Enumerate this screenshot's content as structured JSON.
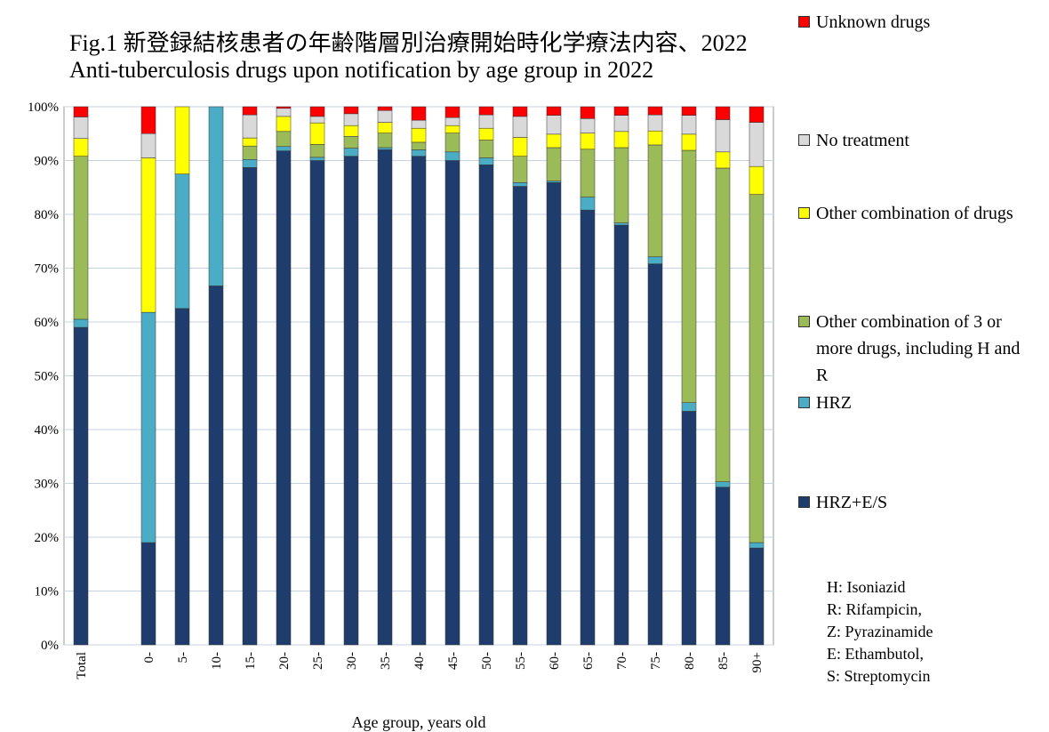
{
  "chart_data": {
    "type": "stacked_bar",
    "title": "Fig.1  新登録結核患者の年齢階層別治療開始時化学療法内容、2022",
    "subtitle": "Anti-tuberculosis  drugs upon notification  by age group in 2022",
    "x_label": "Age group,  years old",
    "categories": [
      "Total",
      null,
      "0-",
      "5-",
      "10-",
      "15-",
      "20-",
      "25-",
      "30-",
      "35-",
      "40-",
      "45-",
      "50-",
      "55-",
      "60-",
      "65-",
      "70-",
      "75-",
      "80-",
      "85-",
      "90+"
    ],
    "series": [
      {
        "name": "HRZ+E/S",
        "color": "#1f3d6c",
        "values": [
          59,
          null,
          19,
          62.5,
          66.7,
          88.7,
          91.8,
          90,
          90.8,
          92,
          90.8,
          90,
          89.2,
          85.2,
          85.9,
          80.8,
          78,
          70.8,
          43.4,
          29.3,
          18
        ]
      },
      {
        "name": "HRZ",
        "color": "#4bacc6",
        "values": [
          1.5,
          null,
          42.8,
          25,
          33.3,
          1.5,
          0.8,
          0.6,
          1.5,
          0.4,
          1.2,
          1.6,
          1.3,
          0.7,
          0.3,
          2.4,
          0.4,
          1.3,
          1.6,
          1,
          1
        ]
      },
      {
        "name": "Other combination of 3 or more drugs, including H and R",
        "color": "#9bbb59",
        "values": [
          30.3,
          null,
          0,
          0,
          0,
          2.5,
          2.8,
          2.4,
          2.2,
          2.7,
          1.4,
          3.5,
          3.3,
          4.9,
          6.2,
          8.9,
          14,
          20.8,
          46.9,
          58.3,
          64.7
        ]
      },
      {
        "name": "Other combination of drugs",
        "color": "#ffff00",
        "values": [
          3.3,
          null,
          28.7,
          12.5,
          0,
          1.5,
          2.8,
          4,
          2,
          2,
          2.6,
          1.4,
          2.2,
          3.5,
          2.5,
          3,
          3,
          2.6,
          3,
          3,
          5.2
        ]
      },
      {
        "name": "No treatment",
        "color": "#d9d9d9",
        "values": [
          4,
          null,
          4.5,
          0,
          0,
          4.3,
          1.5,
          1.2,
          2.2,
          2.2,
          1.5,
          1.5,
          2.5,
          3.9,
          3.5,
          2.7,
          3,
          3,
          3.5,
          6,
          8.2
        ]
      },
      {
        "name": "Unknown drugs",
        "color": "#ff0000",
        "values": [
          1.9,
          null,
          5,
          0,
          0,
          1.5,
          0.3,
          1.8,
          1.3,
          0.7,
          2.5,
          2,
          1.5,
          1.8,
          1.6,
          2.2,
          1.6,
          1.5,
          1.6,
          2.4,
          2.9
        ]
      }
    ],
    "ylim": [
      0,
      100
    ],
    "yticks": [
      {
        "value": 0,
        "label": "0%"
      },
      {
        "value": 10,
        "label": "10%"
      },
      {
        "value": 20,
        "label": "20%"
      },
      {
        "value": 30,
        "label": "30%"
      },
      {
        "value": 40,
        "label": "40%"
      },
      {
        "value": 50,
        "label": "50%"
      },
      {
        "value": 60,
        "label": "60%"
      },
      {
        "value": 70,
        "label": "70%"
      },
      {
        "value": 80,
        "label": "80%"
      },
      {
        "value": 90,
        "label": "90%"
      },
      {
        "value": 100,
        "label": "100%"
      }
    ],
    "grid": true,
    "legend": "right",
    "notes": [
      "H: Isoniazid",
      "R: Rifampicin,",
      "Z: Pyrazinamide",
      "E: Ethambutol,",
      "S: Streptomycin"
    ]
  }
}
